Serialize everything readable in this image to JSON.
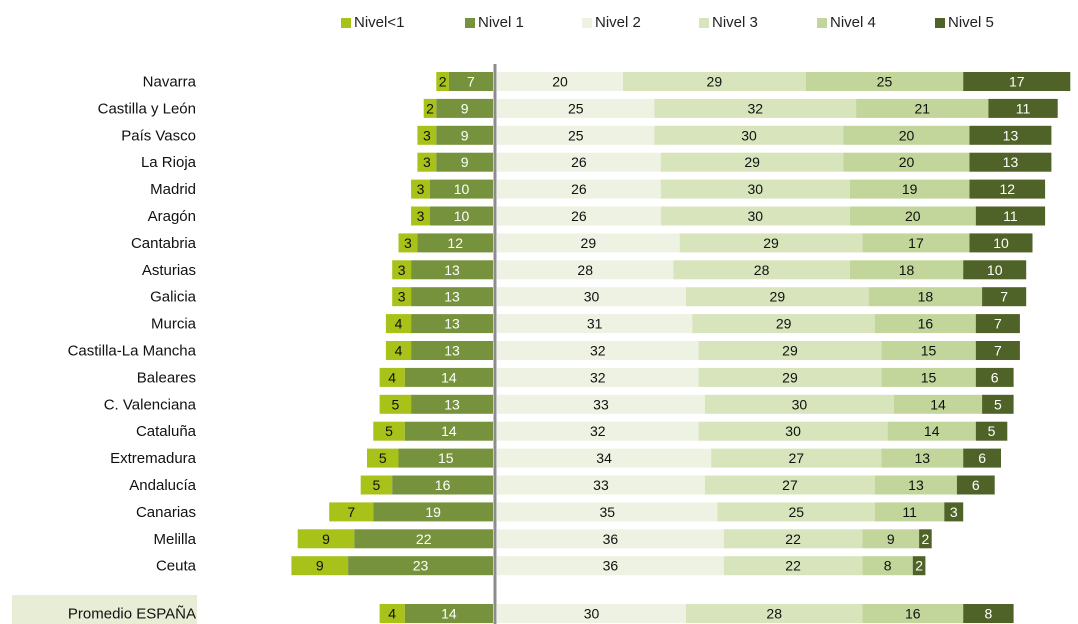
{
  "chart_data": {
    "type": "bar",
    "subtype": "diverging-stacked-horizontal",
    "title": "",
    "xlabel": "",
    "ylabel": "",
    "grid": false,
    "legend_position": "top",
    "series": [
      {
        "name": "Nivel<1",
        "color": "#a8c21a",
        "side": "left"
      },
      {
        "name": "Nivel 1",
        "color": "#76923c",
        "side": "left"
      },
      {
        "name": "Nivel 2",
        "color": "#eef2e2",
        "side": "right"
      },
      {
        "name": "Nivel 3",
        "color": "#d7e4bc",
        "side": "right"
      },
      {
        "name": "Nivel 4",
        "color": "#c2d69b",
        "side": "right"
      },
      {
        "name": "Nivel 5",
        "color": "#4f6228",
        "side": "right"
      }
    ],
    "categories": [
      "Navarra",
      "Castilla y León",
      "País Vasco",
      "La Rioja",
      "Madrid",
      "Aragón",
      "Cantabria",
      "Asturias",
      "Galicia",
      "Murcia",
      "Castilla-La Mancha",
      "Baleares",
      "C. Valenciana",
      "Cataluña",
      "Extremadura",
      "Andalucía",
      "Canarias",
      "Melilla",
      "Ceuta",
      "Promedio  ESPAÑA"
    ],
    "values": [
      [
        2,
        7,
        20,
        29,
        25,
        17
      ],
      [
        2,
        9,
        25,
        32,
        21,
        11
      ],
      [
        3,
        9,
        25,
        30,
        20,
        13
      ],
      [
        3,
        9,
        26,
        29,
        20,
        13
      ],
      [
        3,
        10,
        26,
        30,
        19,
        12
      ],
      [
        3,
        10,
        26,
        30,
        20,
        11
      ],
      [
        3,
        12,
        29,
        29,
        17,
        10
      ],
      [
        3,
        13,
        28,
        28,
        18,
        10
      ],
      [
        3,
        13,
        30,
        29,
        18,
        7
      ],
      [
        4,
        13,
        31,
        29,
        16,
        7
      ],
      [
        4,
        13,
        32,
        29,
        15,
        7
      ],
      [
        4,
        14,
        32,
        29,
        15,
        6
      ],
      [
        5,
        13,
        33,
        30,
        14,
        5
      ],
      [
        5,
        14,
        32,
        30,
        14,
        5
      ],
      [
        5,
        15,
        34,
        27,
        13,
        6
      ],
      [
        5,
        16,
        33,
        27,
        13,
        6
      ],
      [
        7,
        19,
        35,
        25,
        11,
        3
      ],
      [
        9,
        22,
        36,
        22,
        9,
        2
      ],
      [
        9,
        23,
        36,
        22,
        8,
        2
      ],
      [
        4,
        14,
        30,
        28,
        16,
        8
      ]
    ]
  }
}
